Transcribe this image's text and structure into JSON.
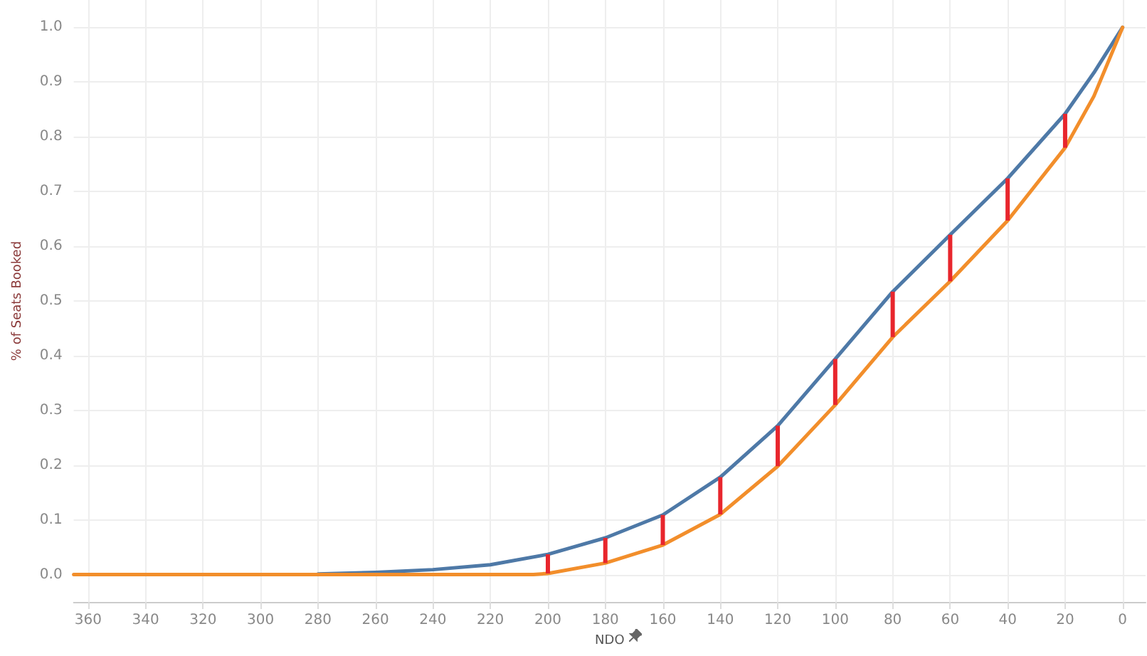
{
  "chart_data": {
    "type": "line",
    "xlabel": "NDO",
    "ylabel": "% of Seats Booked",
    "xlim": [
      365,
      -8
    ],
    "xticks": [
      360,
      340,
      320,
      300,
      280,
      260,
      240,
      220,
      200,
      180,
      160,
      140,
      120,
      100,
      80,
      60,
      40,
      20,
      0
    ],
    "ylim": [
      -0.05,
      1.05
    ],
    "yticks": [
      {
        "value": 0,
        "label": "0.0"
      },
      {
        "value": 0.1,
        "label": "0.1"
      },
      {
        "value": 0.2,
        "label": "0.2"
      },
      {
        "value": 0.3,
        "label": "0.3"
      },
      {
        "value": 0.4,
        "label": "0.4"
      },
      {
        "value": 0.5,
        "label": "0.5"
      },
      {
        "value": 0.6,
        "label": "0.6"
      },
      {
        "value": 0.7,
        "label": "0.7"
      },
      {
        "value": 0.8,
        "label": "0.8"
      },
      {
        "value": 0.9,
        "label": "0.9"
      },
      {
        "value": 1,
        "label": "1.0"
      }
    ],
    "grid": true,
    "marker": "none",
    "line_style": "solid",
    "series": [
      {
        "color": "#4e79a7",
        "x": [
          280,
          260,
          240,
          220,
          200,
          180,
          160,
          140,
          120,
          100,
          80,
          60,
          40,
          20,
          10,
          0
        ],
        "values": [
          0.001,
          0.004,
          0.009,
          0.018,
          0.037,
          0.067,
          0.109,
          0.178,
          0.272,
          0.394,
          0.517,
          0.621,
          0.724,
          0.842,
          0.917,
          1.0
        ]
      },
      {
        "color": "#f28e2b",
        "x": [
          365,
          340,
          320,
          300,
          280,
          260,
          240,
          220,
          205,
          200,
          180,
          160,
          140,
          120,
          100,
          80,
          60,
          40,
          20,
          10,
          0
        ],
        "values": [
          0,
          0,
          0,
          0,
          0,
          0,
          0,
          0,
          0,
          0.002,
          0.021,
          0.054,
          0.11,
          0.198,
          0.31,
          0.434,
          0.536,
          0.647,
          0.78,
          0.874,
          1.0
        ]
      },
      {
        "type": "bar",
        "color": "#e8262d",
        "x": [
          200,
          180,
          160,
          140,
          120,
          100,
          80,
          60,
          40,
          20
        ],
        "base": [
          0.002,
          0.021,
          0.054,
          0.11,
          0.198,
          0.31,
          0.434,
          0.536,
          0.647,
          0.78
        ],
        "values": [
          0.035,
          0.046,
          0.055,
          0.068,
          0.074,
          0.084,
          0.083,
          0.085,
          0.077,
          0.062
        ]
      }
    ]
  }
}
